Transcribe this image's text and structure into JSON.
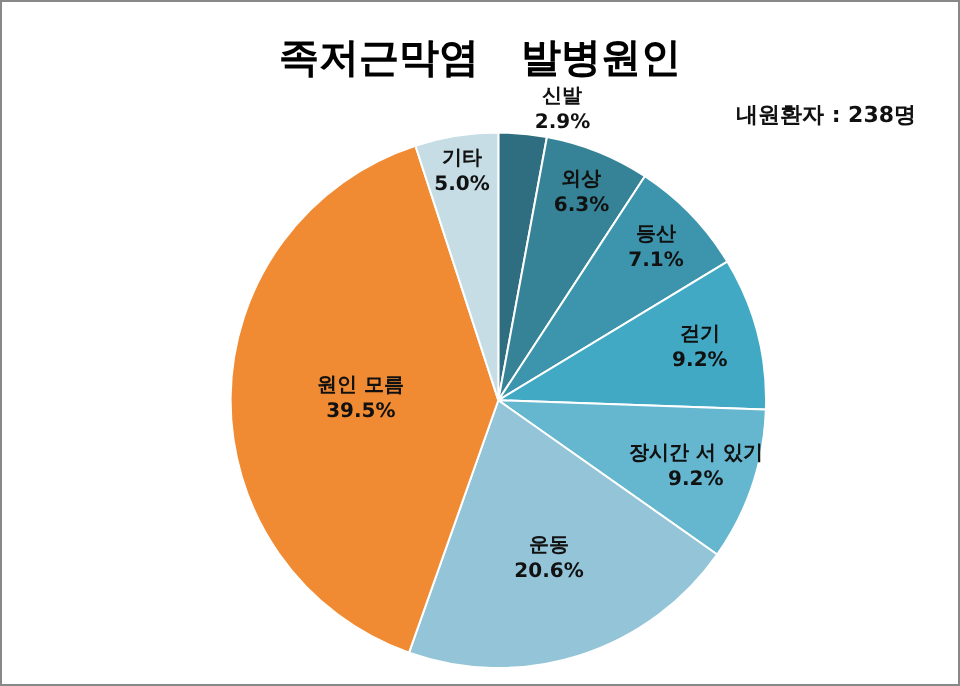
{
  "chart_data": {
    "type": "pie",
    "title": "족저근막염   발병원인",
    "annotations": [
      "내원환자 : 238명"
    ],
    "categories": [
      "신발",
      "외상",
      "등산",
      "걷기",
      "장시간 서 있기",
      "운동",
      "원인 모름",
      "기타"
    ],
    "values": [
      2.9,
      6.3,
      7.1,
      9.2,
      9.2,
      20.6,
      39.5,
      5.0
    ],
    "value_labels": [
      "2.9%",
      "6.3%",
      "7.1%",
      "9.2%",
      "9.2%",
      "20.6%",
      "39.5%",
      "5.0%"
    ],
    "colors": [
      "#2e6e80",
      "#368397",
      "#3c95ad",
      "#42a9c5",
      "#65b6cf",
      "#93c4d8",
      "#f18b33",
      "#c6dde6"
    ],
    "legend": false
  }
}
